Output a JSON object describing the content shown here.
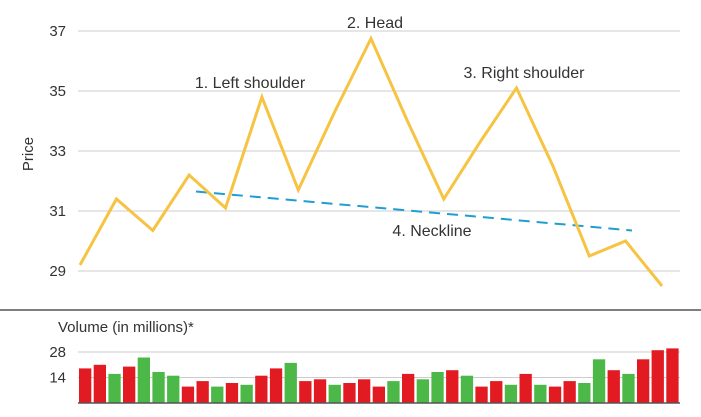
{
  "chart_data": [
    {
      "type": "line",
      "ylabel": "Price",
      "ylim": [
        28.2,
        37.8
      ],
      "yticks": [
        29,
        31,
        33,
        35,
        37
      ],
      "grid": true,
      "series": [
        {
          "values": [
            29.2,
            31.4,
            30.35,
            32.2,
            31.1,
            34.8,
            31.7,
            34.3,
            36.75,
            34.0,
            31.4,
            33.3,
            35.1,
            32.5,
            29.5,
            30.0,
            28.5
          ]
        }
      ],
      "neckline": {
        "start": 31.65,
        "end": 30.35
      },
      "colors": {
        "price": "#f6c342",
        "neckline": "#1f9ed1",
        "grid": "#cccccc",
        "text": "#333333"
      },
      "annotations": [
        "1. Left shoulder",
        "2. Head",
        "3. Right shoulder",
        "4. Neckline"
      ]
    },
    {
      "type": "bar",
      "title": "Volume (in millions)*",
      "ylim": [
        0,
        31
      ],
      "yticks": [
        14,
        28
      ],
      "values": [
        19,
        21,
        16,
        20,
        25,
        17,
        15,
        9,
        12,
        9,
        11,
        10,
        15,
        19,
        22,
        12,
        13,
        10,
        11,
        13,
        9,
        12,
        16,
        13,
        17,
        18,
        15,
        9,
        12,
        10,
        16,
        10,
        9,
        12,
        11,
        24,
        18,
        16,
        24,
        29,
        30
      ],
      "bar_colors": [
        "red",
        "red",
        "green",
        "red",
        "green",
        "green",
        "green",
        "red",
        "red",
        "green",
        "red",
        "green",
        "red",
        "red",
        "green",
        "red",
        "red",
        "green",
        "red",
        "red",
        "red",
        "green",
        "red",
        "green",
        "green",
        "red",
        "green",
        "red",
        "red",
        "green",
        "red",
        "green",
        "red",
        "red",
        "green",
        "green",
        "red",
        "green",
        "red",
        "red",
        "red"
      ],
      "colors": {
        "red": "#e21b23",
        "green": "#4bb848",
        "grid": "#cccccc"
      }
    }
  ]
}
